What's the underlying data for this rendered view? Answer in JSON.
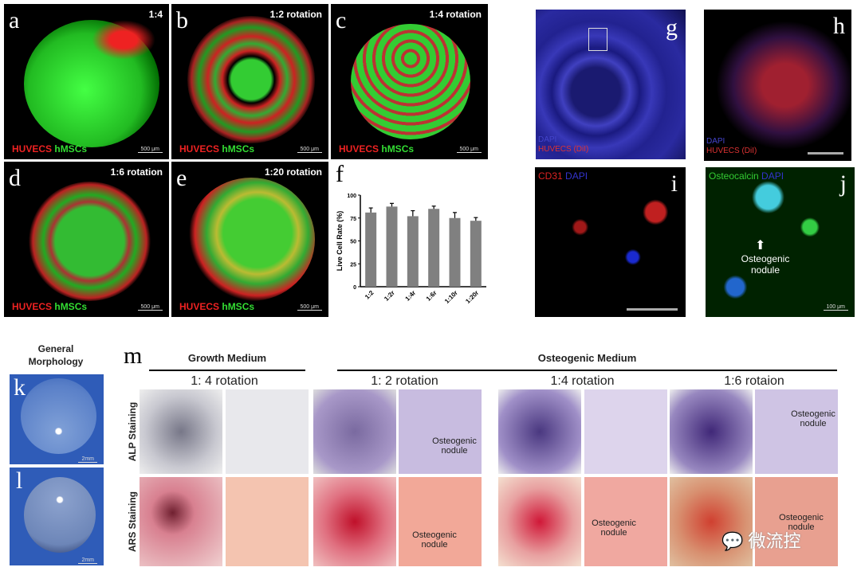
{
  "panels": {
    "a": {
      "letter": "a",
      "tag": "1:4",
      "legend_red": "HUVECS",
      "legend_green": "hMSCs",
      "scale": "500 μm"
    },
    "b": {
      "letter": "b",
      "tag": "1:2 rotation",
      "legend_red": "HUVECS",
      "legend_green": "hMSCs",
      "scale": "500 μm"
    },
    "c": {
      "letter": "c",
      "tag": "1:4 rotation",
      "legend_red": "HUVECS",
      "legend_green": "hMSCs",
      "scale": "500 μm"
    },
    "d": {
      "letter": "d",
      "tag": "1:6 rotation",
      "legend_red": "HUVECS",
      "legend_green": "hMSCs",
      "scale": "500 μm"
    },
    "e": {
      "letter": "e",
      "tag": "1:20 rotation",
      "legend_red": "HUVECS",
      "legend_green": "hMSCs",
      "scale": "500 μm"
    },
    "f": {
      "letter": "f"
    },
    "g": {
      "letter": "g",
      "label_blue": "DAPI",
      "label_red": "HUVECS (DiI)"
    },
    "h": {
      "letter": "h",
      "label_blue": "DAPI",
      "label_red": "HUVECS (DiI)"
    },
    "i": {
      "letter": "i",
      "label_red": "CD31",
      "label_blue": "DAPI"
    },
    "j": {
      "letter": "j",
      "label_green": "Osteocalcin",
      "label_blue": "DAPI",
      "note": "Osteogenic nodule",
      "scale": "100 μm"
    },
    "k": {
      "letter": "k",
      "scale": "2mm"
    },
    "l": {
      "letter": "l",
      "scale": "2mm"
    },
    "general_title": "General Morphology"
  },
  "m": {
    "letter": "m",
    "growth": "Growth Medium",
    "osteo": "Osteogenic Medium",
    "rotations": [
      "1: 4 rotation",
      "1: 2 rotation",
      "1:4 rotation",
      "1:6 rotaion"
    ],
    "rows": [
      "ALP Staining",
      "ARS Staining"
    ],
    "nodule_label": "Osteogenic nodule"
  },
  "watermark": "微流控",
  "chart_data": {
    "type": "bar",
    "ylabel": "Live Cell Rate (%)",
    "ylim": [
      0,
      100
    ],
    "yticks": [
      0,
      25,
      50,
      75,
      100
    ],
    "categories": [
      "1:2",
      "1:2r",
      "1:4r",
      "1:6r",
      "1:10r",
      "1:20r"
    ],
    "values": [
      81,
      87.5,
      77,
      85,
      75,
      72
    ],
    "errors": [
      5,
      3.5,
      6,
      3,
      6,
      3.5
    ],
    "bar_color": "#808080"
  }
}
